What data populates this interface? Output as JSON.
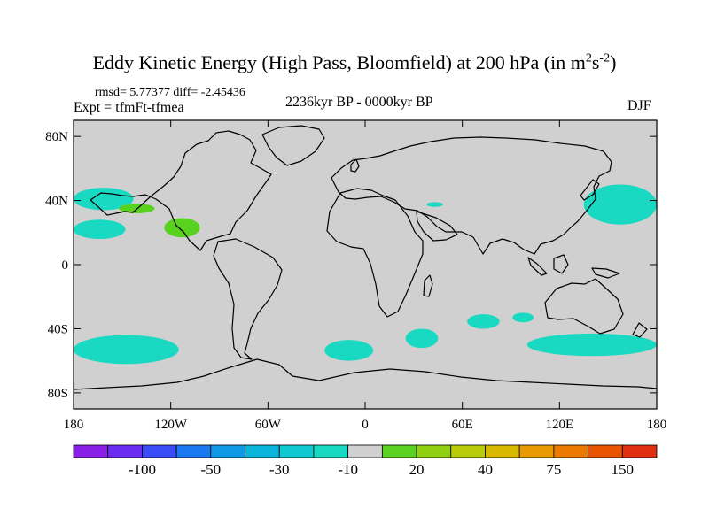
{
  "figure": {
    "title": "Eddy Kinetic Energy (High Pass, Bloomfield) at 200 hPa (in m",
    "title_unit_sup1": "2",
    "title_unit_mid": "s",
    "title_unit_sup2": "-2",
    "title_close": ")",
    "stats_line": "rmsd= 5.77377 diff= -2.45436",
    "experiment": "Expt = tfmFt-tfmea",
    "period": "2236kyr BP - 0000kyr BP",
    "season": "DJF"
  },
  "colors": {
    "background_field": "#d0d0d0",
    "negative_10_to_30": "#1ad9c2",
    "negative_30_to_40": "#00c8cc",
    "positive_10_to_20": "#59d11f",
    "coastline": "#000000"
  },
  "chart_data": {
    "type": "heatmap",
    "title": "Eddy Kinetic Energy (High Pass, Bloomfield) at 200 hPa (in m^2 s^-2)",
    "subtitle": "2236kyr BP - 0000kyr BP",
    "xlabel": "",
    "ylabel": "",
    "xlim": [
      -180,
      180
    ],
    "ylim": [
      -90,
      90
    ],
    "x_ticks": [
      {
        "value": -180,
        "label": "180"
      },
      {
        "value": -120,
        "label": "120W"
      },
      {
        "value": -60,
        "label": "60W"
      },
      {
        "value": 0,
        "label": "0"
      },
      {
        "value": 60,
        "label": "60E"
      },
      {
        "value": 120,
        "label": "120E"
      },
      {
        "value": 180,
        "label": "180"
      }
    ],
    "y_ticks": [
      {
        "value": 80,
        "label": "80N"
      },
      {
        "value": 40,
        "label": "40N"
      },
      {
        "value": 0,
        "label": "0"
      },
      {
        "value": -40,
        "label": "40S"
      },
      {
        "value": -80,
        "label": "80S"
      }
    ],
    "colorbar": {
      "colors": [
        "#8a1ee6",
        "#6a2cf0",
        "#3a4cf5",
        "#1a78f0",
        "#0f98e6",
        "#0ab4db",
        "#10c8d0",
        "#1ad9c2",
        "#d0d0d0",
        "#59d11f",
        "#8fd012",
        "#b8cc0a",
        "#d9b800",
        "#e89a00",
        "#ec7a00",
        "#e95400",
        "#e03010"
      ],
      "labels": [
        {
          "slot": 2,
          "text": "-100"
        },
        {
          "slot": 4,
          "text": "-50"
        },
        {
          "slot": 6,
          "text": "-30"
        },
        {
          "slot": 8,
          "text": "-10"
        },
        {
          "slot": 10,
          "text": "20"
        },
        {
          "slot": 12,
          "text": "40"
        },
        {
          "slot": 14,
          "text": "75"
        },
        {
          "slot": 16,
          "text": "150"
        }
      ]
    },
    "regions": [
      {
        "name": "north-pacific-east-band",
        "sign": "negative",
        "lon": [
          -180,
          -143
        ],
        "lat": [
          34,
          48
        ],
        "level": "-10"
      },
      {
        "name": "north-pacific-east-lower",
        "sign": "negative",
        "lon": [
          -180,
          -148
        ],
        "lat": [
          16,
          28
        ],
        "level": "-10"
      },
      {
        "name": "north-pacific-west",
        "sign": "negative",
        "lon": [
          135,
          180
        ],
        "lat": [
          25,
          50
        ],
        "level": "-10"
      },
      {
        "name": "mediterranean-patch",
        "sign": "negative",
        "lon": [
          38,
          48
        ],
        "lat": [
          36,
          39
        ],
        "level": "-10"
      },
      {
        "name": "south-pacific-band",
        "sign": "negative",
        "lon": [
          -180,
          -115
        ],
        "lat": [
          -62,
          -44
        ],
        "level": "-10"
      },
      {
        "name": "south-atlantic-band",
        "sign": "negative",
        "lon": [
          -25,
          5
        ],
        "lat": [
          -60,
          -47
        ],
        "level": "-10"
      },
      {
        "name": "south-indian-1",
        "sign": "negative",
        "lon": [
          25,
          45
        ],
        "lat": [
          -52,
          -40
        ],
        "level": "-10"
      },
      {
        "name": "south-indian-2",
        "sign": "negative",
        "lon": [
          63,
          83
        ],
        "lat": [
          -40,
          -31
        ],
        "level": "-10"
      },
      {
        "name": "south-indian-3",
        "sign": "negative",
        "lon": [
          91,
          104
        ],
        "lat": [
          -36,
          -30
        ],
        "level": "-10"
      },
      {
        "name": "southern-ocean-australia",
        "sign": "negative",
        "lon": [
          100,
          180
        ],
        "lat": [
          -57,
          -43
        ],
        "level": "-10"
      },
      {
        "name": "pacific-positive-1",
        "sign": "positive",
        "lon": [
          -152,
          -130
        ],
        "lat": [
          32,
          38
        ],
        "level": "10"
      },
      {
        "name": "pacific-positive-2",
        "sign": "positive",
        "lon": [
          -124,
          -102
        ],
        "lat": [
          17,
          29
        ],
        "level": "10"
      }
    ]
  }
}
